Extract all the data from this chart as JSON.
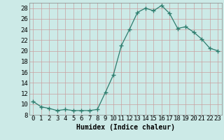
{
  "x": [
    0,
    1,
    2,
    3,
    4,
    5,
    6,
    7,
    8,
    9,
    10,
    11,
    12,
    13,
    14,
    15,
    16,
    17,
    18,
    19,
    20,
    21,
    22,
    23
  ],
  "y": [
    10.5,
    9.5,
    9.2,
    8.8,
    9.0,
    8.8,
    8.8,
    8.8,
    9.0,
    12.2,
    15.5,
    21.0,
    24.0,
    27.2,
    28.0,
    27.5,
    28.5,
    27.0,
    24.2,
    24.5,
    23.5,
    22.2,
    20.5,
    20.0
  ],
  "line_color": "#2e7d6e",
  "marker": "+",
  "marker_size": 4,
  "marker_lw": 1.0,
  "bg_color": "#cceae7",
  "grid_color": "#c8a0a0",
  "xlabel": "Humidex (Indice chaleur)",
  "xlim": [
    -0.5,
    23.5
  ],
  "ylim": [
    8,
    29
  ],
  "yticks": [
    8,
    10,
    12,
    14,
    16,
    18,
    20,
    22,
    24,
    26,
    28
  ],
  "xticks": [
    0,
    1,
    2,
    3,
    4,
    5,
    6,
    7,
    8,
    9,
    10,
    11,
    12,
    13,
    14,
    15,
    16,
    17,
    18,
    19,
    20,
    21,
    22,
    23
  ],
  "xlabel_fontsize": 7,
  "tick_fontsize": 6.5
}
